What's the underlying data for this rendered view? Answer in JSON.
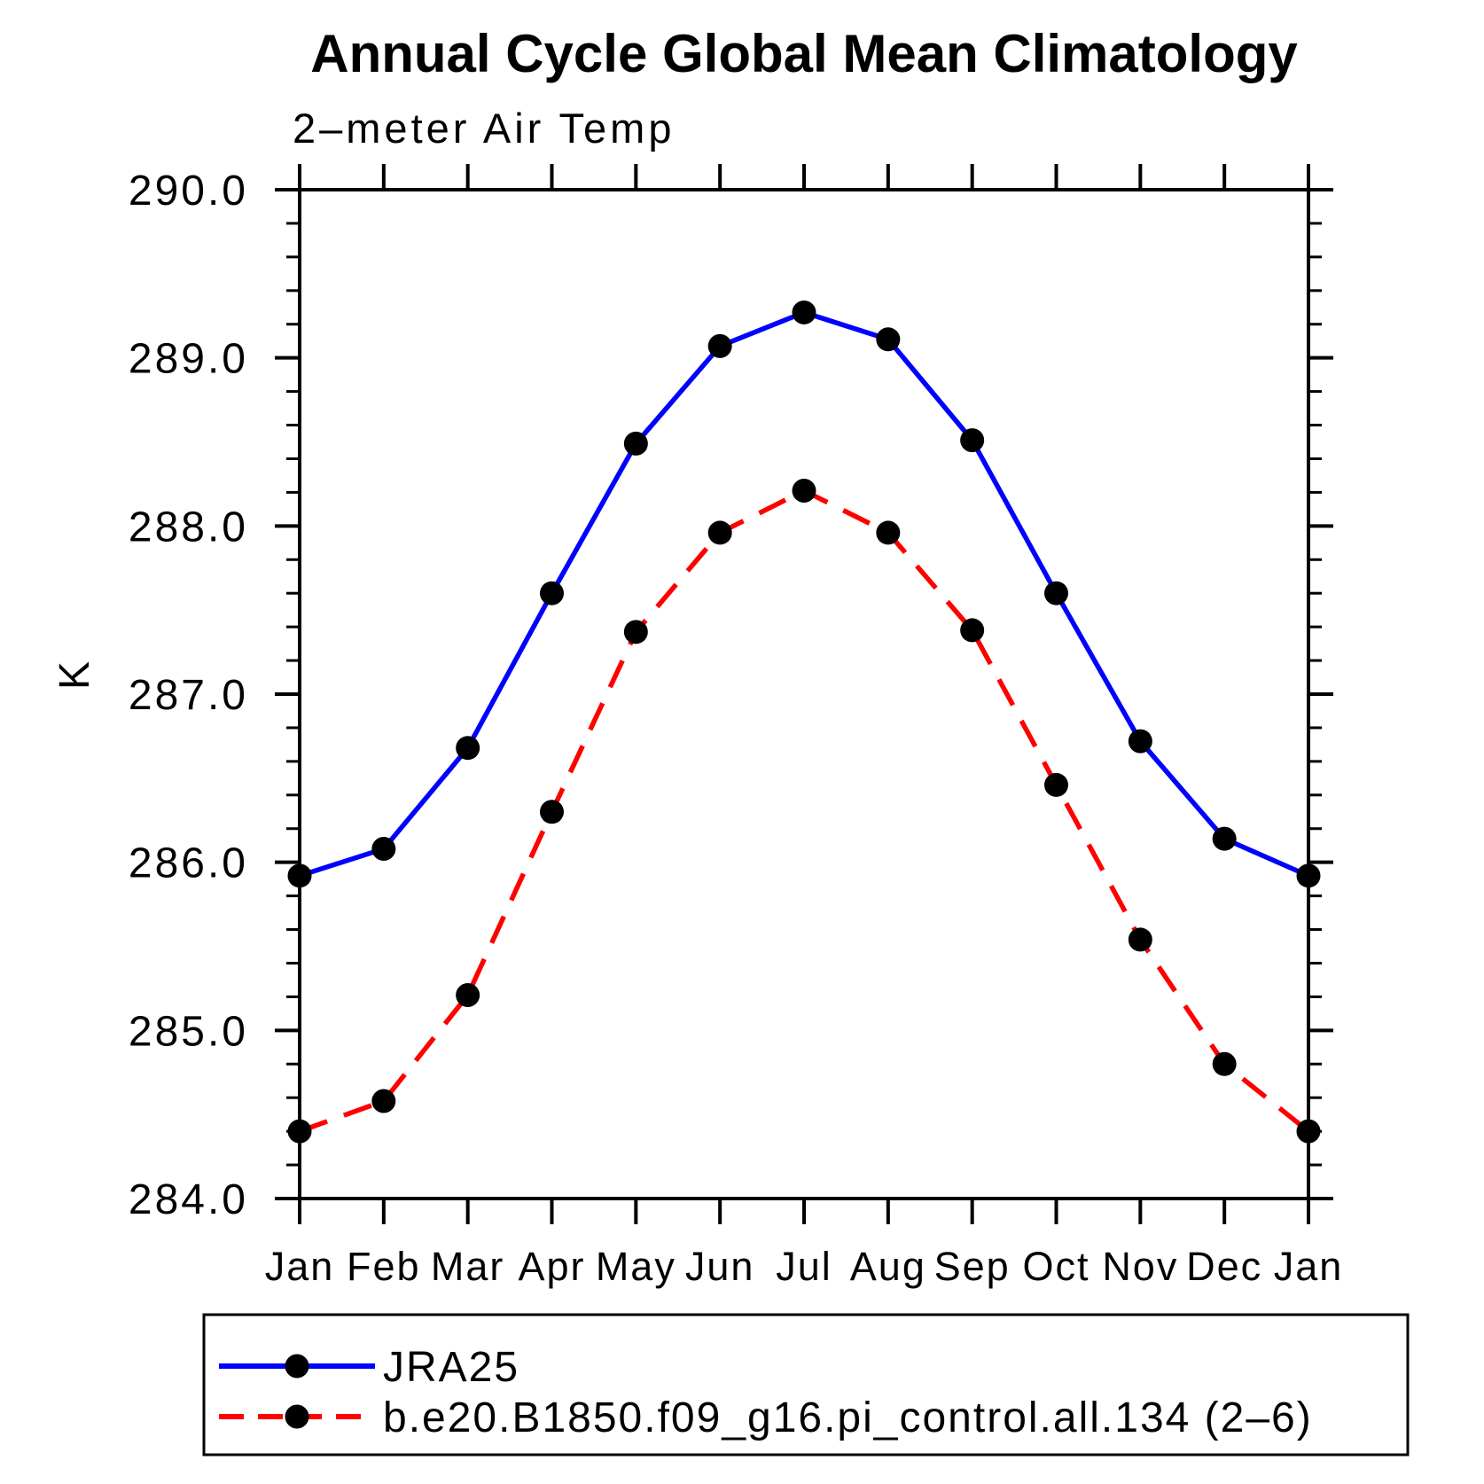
{
  "chart_data": {
    "type": "line",
    "title": "Annual Cycle Global Mean Climatology",
    "subtitle": "2–meter Air Temp",
    "ylabel": "K",
    "x_categories": [
      "Jan",
      "Feb",
      "Mar",
      "Apr",
      "May",
      "Jun",
      "Jul",
      "Aug",
      "Sep",
      "Oct",
      "Nov",
      "Dec",
      "Jan"
    ],
    "ylim": [
      284.0,
      290.0
    ],
    "ytick_major_step": 1.0,
    "ytick_minor_step": 0.2,
    "ytick_labels": [
      "284.0",
      "285.0",
      "286.0",
      "287.0",
      "288.0",
      "289.0",
      "290.0"
    ],
    "grid": false,
    "legend_position": "bottom-left-box",
    "axis_color": "#000000",
    "marker_shape": "circle",
    "series": [
      {
        "name": "JRA25",
        "color": "#0000ff",
        "line_style": "solid",
        "marker_color": "#000000",
        "values": [
          285.92,
          286.08,
          286.68,
          287.6,
          288.49,
          289.07,
          289.27,
          289.11,
          288.51,
          287.6,
          286.72,
          286.14,
          285.92
        ]
      },
      {
        "name": "b.e20.B1850.f09_g16.pi_control.all.134 (2–6)",
        "color": "#ff0000",
        "line_style": "dashed",
        "marker_color": "#000000",
        "values": [
          284.4,
          284.58,
          285.21,
          286.3,
          287.37,
          287.96,
          288.21,
          287.96,
          287.38,
          286.46,
          285.54,
          284.8,
          284.4
        ]
      }
    ]
  }
}
